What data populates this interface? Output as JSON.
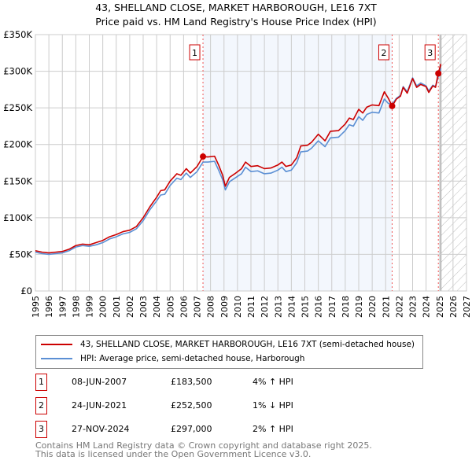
{
  "title": "43, SHELLAND CLOSE, MARKET HARBOROUGH, LE16 7XT",
  "subtitle": "Price paid vs. HM Land Registry's House Price Index (HPI)",
  "chart_data": {
    "type": "line",
    "title": "43, SHELLAND CLOSE, MARKET HARBOROUGH, LE16 7XT",
    "subtitle": "Price paid vs. HM Land Registry's House Price Index (HPI)",
    "xlim": [
      1995,
      2027
    ],
    "ylim": [
      0,
      350000
    ],
    "x_ticks": [
      "1995",
      "1996",
      "1997",
      "1998",
      "1999",
      "2000",
      "2001",
      "2002",
      "2003",
      "2004",
      "2005",
      "2006",
      "2007",
      "2008",
      "2009",
      "2010",
      "2011",
      "2012",
      "2013",
      "2014",
      "2015",
      "2016",
      "2017",
      "2018",
      "2019",
      "2020",
      "2021",
      "2022",
      "2023",
      "2024",
      "2025",
      "2026",
      "2027"
    ],
    "y_ticks": [
      {
        "v": 0,
        "label": "£0"
      },
      {
        "v": 50000,
        "label": "£50K"
      },
      {
        "v": 100000,
        "label": "£100K"
      },
      {
        "v": 150000,
        "label": "£150K"
      },
      {
        "v": 200000,
        "label": "£200K"
      },
      {
        "v": 250000,
        "label": "£250K"
      },
      {
        "v": 300000,
        "label": "£300K"
      },
      {
        "v": 350000,
        "label": "£350K"
      }
    ],
    "grid": true,
    "shaded_range": [
      2007.44,
      2021.48
    ],
    "forecast_hatch_from": 2025.1,
    "series": [
      {
        "name": "43, SHELLAND CLOSE, MARKET HARBOROUGH, LE16 7XT (semi-detached house)",
        "color": "#cc0000",
        "points": [
          [
            1995,
            55000
          ],
          [
            1995.5,
            53000
          ],
          [
            1996,
            52000
          ],
          [
            1996.5,
            53000
          ],
          [
            1997,
            54000
          ],
          [
            1997.5,
            57000
          ],
          [
            1998,
            62000
          ],
          [
            1998.5,
            64000
          ],
          [
            1999,
            63000
          ],
          [
            1999.5,
            66000
          ],
          [
            2000,
            69000
          ],
          [
            2000.5,
            74000
          ],
          [
            2001,
            77000
          ],
          [
            2001.5,
            81000
          ],
          [
            2002,
            83000
          ],
          [
            2002.5,
            88000
          ],
          [
            2003,
            100000
          ],
          [
            2003.5,
            115000
          ],
          [
            2004,
            128000
          ],
          [
            2004.3,
            137000
          ],
          [
            2004.6,
            138000
          ],
          [
            2005,
            150000
          ],
          [
            2005.5,
            160000
          ],
          [
            2005.8,
            158000
          ],
          [
            2006.2,
            167000
          ],
          [
            2006.5,
            161000
          ],
          [
            2007,
            170000
          ],
          [
            2007.44,
            183500
          ],
          [
            2007.8,
            183000
          ],
          [
            2008.3,
            184000
          ],
          [
            2008.6,
            172000
          ],
          [
            2008.9,
            158000
          ],
          [
            2009.1,
            143000
          ],
          [
            2009.4,
            155000
          ],
          [
            2009.8,
            160000
          ],
          [
            2010.3,
            167000
          ],
          [
            2010.6,
            176000
          ],
          [
            2011,
            170000
          ],
          [
            2011.5,
            171000
          ],
          [
            2012,
            167000
          ],
          [
            2012.5,
            168000
          ],
          [
            2013,
            172000
          ],
          [
            2013.3,
            176000
          ],
          [
            2013.6,
            170000
          ],
          [
            2014,
            172000
          ],
          [
            2014.4,
            182000
          ],
          [
            2014.7,
            198000
          ],
          [
            2015.2,
            199000
          ],
          [
            2015.5,
            203000
          ],
          [
            2016,
            214000
          ],
          [
            2016.5,
            205000
          ],
          [
            2016.9,
            218000
          ],
          [
            2017.5,
            219000
          ],
          [
            2018,
            228000
          ],
          [
            2018.3,
            236000
          ],
          [
            2018.6,
            234000
          ],
          [
            2019,
            248000
          ],
          [
            2019.3,
            243000
          ],
          [
            2019.6,
            251000
          ],
          [
            2020,
            254000
          ],
          [
            2020.5,
            253000
          ],
          [
            2020.9,
            272000
          ],
          [
            2021.2,
            263000
          ],
          [
            2021.48,
            252500
          ],
          [
            2021.8,
            262000
          ],
          [
            2022.1,
            266000
          ],
          [
            2022.3,
            278000
          ],
          [
            2022.6,
            270000
          ],
          [
            2023,
            290000
          ],
          [
            2023.3,
            278000
          ],
          [
            2023.6,
            282000
          ],
          [
            2024,
            279000
          ],
          [
            2024.2,
            271000
          ],
          [
            2024.5,
            280000
          ],
          [
            2024.7,
            278000
          ],
          [
            2024.9,
            297000
          ],
          [
            2025.1,
            310000
          ]
        ]
      },
      {
        "name": "HPI: Average price, semi-detached house, Harborough",
        "color": "#5b8fd4",
        "points": [
          [
            1995,
            53000
          ],
          [
            1995.5,
            51000
          ],
          [
            1996,
            50000
          ],
          [
            1996.5,
            51000
          ],
          [
            1997,
            52000
          ],
          [
            1997.5,
            55000
          ],
          [
            1998,
            60000
          ],
          [
            1998.5,
            62000
          ],
          [
            1999,
            61000
          ],
          [
            1999.5,
            63000
          ],
          [
            2000,
            66000
          ],
          [
            2000.5,
            71000
          ],
          [
            2001,
            74000
          ],
          [
            2001.5,
            78000
          ],
          [
            2002,
            80000
          ],
          [
            2002.5,
            85000
          ],
          [
            2003,
            96000
          ],
          [
            2003.5,
            111000
          ],
          [
            2004,
            123000
          ],
          [
            2004.3,
            131000
          ],
          [
            2004.6,
            132000
          ],
          [
            2005,
            144000
          ],
          [
            2005.5,
            154000
          ],
          [
            2005.8,
            152000
          ],
          [
            2006.2,
            161000
          ],
          [
            2006.5,
            155000
          ],
          [
            2007,
            163000
          ],
          [
            2007.44,
            176000
          ],
          [
            2007.8,
            176000
          ],
          [
            2008.3,
            177000
          ],
          [
            2008.6,
            165000
          ],
          [
            2008.9,
            152000
          ],
          [
            2009.1,
            138000
          ],
          [
            2009.4,
            149000
          ],
          [
            2009.8,
            154000
          ],
          [
            2010.3,
            160000
          ],
          [
            2010.6,
            169000
          ],
          [
            2011,
            163000
          ],
          [
            2011.5,
            164000
          ],
          [
            2012,
            160000
          ],
          [
            2012.5,
            161000
          ],
          [
            2013,
            165000
          ],
          [
            2013.3,
            169000
          ],
          [
            2013.6,
            163000
          ],
          [
            2014,
            165000
          ],
          [
            2014.4,
            175000
          ],
          [
            2014.7,
            190000
          ],
          [
            2015.2,
            191000
          ],
          [
            2015.5,
            195000
          ],
          [
            2016,
            205000
          ],
          [
            2016.5,
            197000
          ],
          [
            2016.9,
            209000
          ],
          [
            2017.5,
            210000
          ],
          [
            2018,
            219000
          ],
          [
            2018.3,
            227000
          ],
          [
            2018.6,
            225000
          ],
          [
            2019,
            238000
          ],
          [
            2019.3,
            233000
          ],
          [
            2019.6,
            241000
          ],
          [
            2020,
            244000
          ],
          [
            2020.5,
            243000
          ],
          [
            2020.9,
            262000
          ],
          [
            2021.2,
            256000
          ],
          [
            2021.48,
            255000
          ],
          [
            2021.8,
            263000
          ],
          [
            2022.1,
            267000
          ],
          [
            2022.3,
            279000
          ],
          [
            2022.6,
            272000
          ],
          [
            2023,
            291000
          ],
          [
            2023.3,
            280000
          ],
          [
            2023.6,
            284000
          ],
          [
            2024,
            280000
          ],
          [
            2024.2,
            273000
          ],
          [
            2024.5,
            281000
          ],
          [
            2024.7,
            279000
          ],
          [
            2024.9,
            292000
          ],
          [
            2025.1,
            304000
          ]
        ]
      }
    ],
    "sales": [
      {
        "label": "1",
        "x": 2007.44,
        "y": 183500
      },
      {
        "label": "2",
        "x": 2021.48,
        "y": 252500
      },
      {
        "label": "3",
        "x": 2024.91,
        "y": 297000
      }
    ]
  },
  "legend": {
    "property": "43, SHELLAND CLOSE, MARKET HARBOROUGH, LE16 7XT (semi-detached house)",
    "hpi": "HPI: Average price, semi-detached house, Harborough"
  },
  "transactions": [
    {
      "num": "1",
      "date": "08-JUN-2007",
      "price": "£183,500",
      "hpi": "4% ↑ HPI"
    },
    {
      "num": "2",
      "date": "24-JUN-2021",
      "price": "£252,500",
      "hpi": "1% ↓ HPI"
    },
    {
      "num": "3",
      "date": "27-NOV-2024",
      "price": "£297,000",
      "hpi": "2% ↑ HPI"
    }
  ],
  "footer": {
    "line1": "Contains HM Land Registry data © Crown copyright and database right 2025.",
    "line2": "This data is licensed under the Open Government Licence v3.0."
  }
}
